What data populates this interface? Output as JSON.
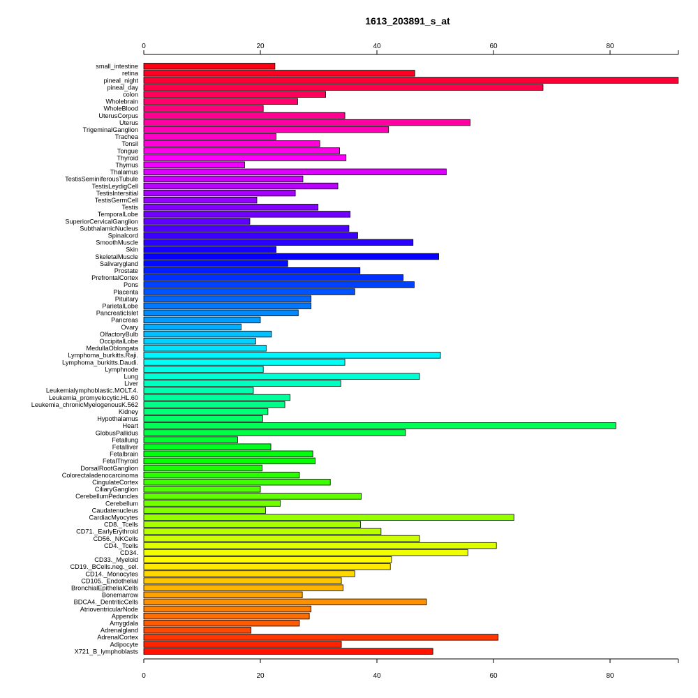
{
  "chart_data": {
    "type": "bar",
    "orientation": "horizontal",
    "title": "1613_203891_s_at",
    "xlabel": "",
    "ylabel": "",
    "xlim": [
      0,
      91.7
    ],
    "xticks": [
      0,
      20,
      40,
      60,
      80
    ],
    "categories": [
      "small_intestine",
      "retina",
      "pineal_night",
      "pineal_day",
      "colon",
      "Wholebrain",
      "WholeBlood",
      "UterusCorpus",
      "Uterus",
      "TrigeminalGanglion",
      "Trachea",
      "Tonsil",
      "Tongue",
      "Thyroid",
      "Thymus",
      "Thalamus",
      "TestisSeminiferousTubule",
      "TestisLeydigCell",
      "TestisIntersitial",
      "TestisGermCell",
      "Testis",
      "TemporalLobe",
      "SuperiorCervicalGanglion",
      "SubthalamicNucleus",
      "Spinalcord",
      "SmoothMuscle",
      "Skin",
      "SkeletalMuscle",
      "Salivarygland",
      "Prostate",
      "PrefrontalCortex",
      "Pons",
      "Placenta",
      "Pituitary",
      "ParietalLobe",
      "PancreaticIslet",
      "Pancreas",
      "Ovary",
      "OlfactoryBulb",
      "OccipitalLobe",
      "MedullaOblongata",
      "Lymphoma_burkitts.Raji.",
      "Lymphoma_burkitts.Daudi.",
      "Lymphnode",
      "Lung",
      "Liver",
      "Leukemialymphoblastic.MOLT.4.",
      "Leukemia_promyelocytic.HL.60",
      "Leukemia_chronicMyelogenousK.562",
      "Kidney",
      "Hypothalamus",
      "Heart",
      "GlobusPallidus",
      "Fetallung",
      "Fetalliver",
      "Fetalbrain",
      "FetalThyroid",
      "DorsalRootGanglion",
      "Colorectaladenocarcinoma",
      "CingulateCortex",
      "CiliaryGanglion",
      "CerebellumPeduncles",
      "Cerebellum",
      "Caudatenucleus",
      "CardiacMyocytes",
      "CD8._Tcells",
      "CD71._EarlyErythroid",
      "CD56._NKCells",
      "CD4._Tcells",
      "CD34.",
      "CD33._Myeloid",
      "CD19._BCells.neg._sel.",
      "CD14._Monocytes",
      "CD105._Endothelial",
      "BronchialEpithelialCells",
      "Bonemarrow",
      "BDCA4._DentriticCells",
      "AtrioventricularNode",
      "Appendix",
      "Amygdala",
      "Adrenalgland",
      "AdrenalCortex",
      "Adipocyte",
      "X721_B_lymphoblasts"
    ],
    "values": [
      22.5,
      46.5,
      91.7,
      68.5,
      31.2,
      26.4,
      20.5,
      34.5,
      56.0,
      42.0,
      22.7,
      30.2,
      33.6,
      34.7,
      17.3,
      51.9,
      27.3,
      33.3,
      26.0,
      19.4,
      29.9,
      35.4,
      18.2,
      35.2,
      36.7,
      46.2,
      22.7,
      50.6,
      24.7,
      37.1,
      44.5,
      46.4,
      36.2,
      28.7,
      28.7,
      26.5,
      20.0,
      16.7,
      21.9,
      19.2,
      21.0,
      50.9,
      34.5,
      20.5,
      47.3,
      33.8,
      18.8,
      25.1,
      24.2,
      21.3,
      20.4,
      81.0,
      44.9,
      16.1,
      21.8,
      29.0,
      29.4,
      20.3,
      26.7,
      32.0,
      20.0,
      37.3,
      23.4,
      20.9,
      63.5,
      37.2,
      40.7,
      47.3,
      60.5,
      55.6,
      42.5,
      42.3,
      36.2,
      33.9,
      34.2,
      27.2,
      48.5,
      28.7,
      28.4,
      26.7,
      18.4,
      60.8,
      33.9,
      49.6
    ],
    "bar_color_scheme": "rainbow"
  }
}
